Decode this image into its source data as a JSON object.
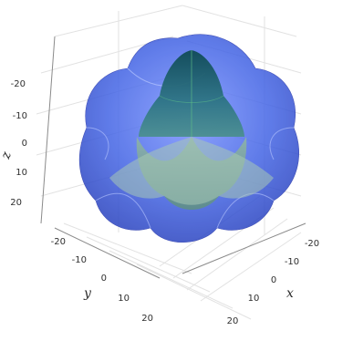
{
  "chart_data": {
    "type": "surface3d",
    "title": "",
    "axes": {
      "x": {
        "label": "x",
        "range": [
          -25,
          25
        ],
        "ticks": [
          "-20",
          "-10",
          "0",
          "10",
          "20"
        ]
      },
      "y": {
        "label": "y",
        "range": [
          -25,
          25
        ],
        "ticks": [
          "-20",
          "-10",
          "0",
          "10",
          "20"
        ]
      },
      "z": {
        "label": "z",
        "range": [
          -25,
          25
        ],
        "ticks": [
          "-20",
          "-10",
          "0",
          "10",
          "20"
        ]
      }
    },
    "grid": true,
    "legend": "none",
    "surfaces": [
      {
        "role": "outer",
        "description_color": "#3c5fe0",
        "opacity": 0.6
      },
      {
        "role": "inner",
        "description_color": "#2e7d6e",
        "opacity": 0.75
      }
    ]
  }
}
